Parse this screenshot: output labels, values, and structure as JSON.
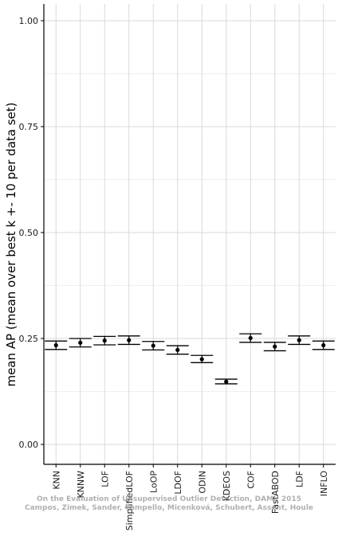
{
  "chart_data": {
    "type": "scatter",
    "title": "",
    "xlabel": "",
    "ylabel": "mean AP (mean over best k +- 10 per data set)",
    "ylim": [
      -0.04,
      1.05
    ],
    "yticks": [
      "0.00",
      "0.25",
      "0.50",
      "0.75",
      "1.00"
    ],
    "grid": true,
    "categories": [
      "KNN",
      "KNNW",
      "LOF",
      "SimplifiedLOF",
      "LoOP",
      "LDOF",
      "ODIN",
      "KDEOS",
      "COF",
      "FastABOD",
      "LDF",
      "INFLO"
    ],
    "series": [
      {
        "mean": [
          0.234,
          0.24,
          0.245,
          0.246,
          0.233,
          0.223,
          0.201,
          0.148,
          0.251,
          0.231,
          0.246,
          0.234
        ],
        "lower": [
          0.224,
          0.23,
          0.235,
          0.236,
          0.223,
          0.213,
          0.193,
          0.143,
          0.241,
          0.221,
          0.236,
          0.224
        ],
        "upper": [
          0.244,
          0.25,
          0.255,
          0.256,
          0.243,
          0.233,
          0.21,
          0.154,
          0.261,
          0.241,
          0.256,
          0.244
        ]
      }
    ],
    "colors": {
      "grid": "#d9d9d9",
      "axis": "#000000",
      "marks": "#000000"
    }
  },
  "watermark": {
    "line1": "On the Evaluation of Unsupervised Outlier Detection, DAMI, 2015",
    "line2": "Campos, Zimek, Sander, Campello, Micenková, Schubert, Assent, Houle"
  }
}
